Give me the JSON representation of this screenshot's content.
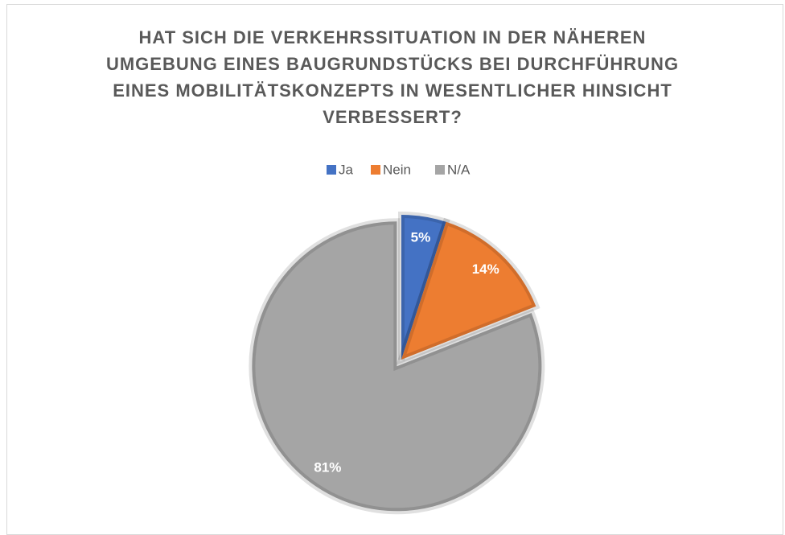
{
  "chart_data": {
    "type": "pie",
    "title": "HAT SICH DIE VERKEHRSSITUATION IN DER NÄHEREN UMGEBUNG EINES BAUGRUNDSTÜCKS BEI DURCHFÜHRUNG EINES MOBILITÄTSKONZEPTS IN WESENTLICHER HINSICHT VERBESSERT?",
    "categories": [
      "Ja",
      "Nein",
      "N/A"
    ],
    "values": [
      5,
      14,
      81
    ],
    "value_labels": [
      "5%",
      "14%",
      "81%"
    ],
    "colors": [
      "#4472c4",
      "#ed7d31",
      "#a5a5a5"
    ],
    "legend": "top"
  }
}
